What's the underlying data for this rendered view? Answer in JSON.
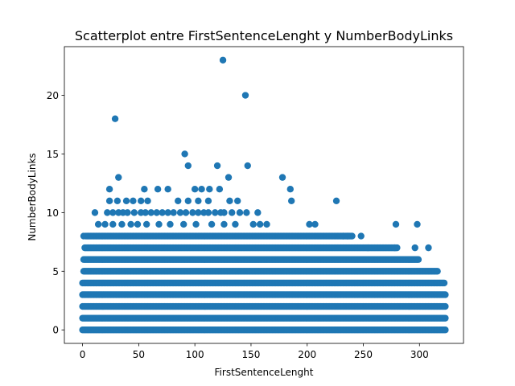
{
  "chart_data": {
    "type": "scatter",
    "title": "Scatterplot entre FirstSentenceLenght y NumberBodyLinks",
    "xlabel": "FirstSentenceLenght",
    "ylabel": "NumberBodyLinks",
    "xlim": [
      -16.2,
      339.2
    ],
    "ylim": [
      -1.15,
      24.15
    ],
    "xticks": [
      0,
      50,
      100,
      150,
      200,
      250,
      300
    ],
    "yticks": [
      0,
      5,
      10,
      15,
      20
    ],
    "grid": false,
    "marker_color": "#1f77b4",
    "series": [
      {
        "name": "",
        "points": [
          [
            125,
            23
          ],
          [
            145,
            20
          ],
          [
            29,
            18
          ],
          [
            91,
            15
          ],
          [
            94,
            14
          ],
          [
            120,
            14
          ],
          [
            147,
            14
          ],
          [
            32,
            13
          ],
          [
            130,
            13
          ],
          [
            178,
            13
          ],
          [
            24,
            12
          ],
          [
            55,
            12
          ],
          [
            67,
            12
          ],
          [
            76,
            12
          ],
          [
            100,
            12
          ],
          [
            106,
            12
          ],
          [
            113,
            12
          ],
          [
            122,
            12
          ],
          [
            185,
            12
          ],
          [
            24,
            11
          ],
          [
            31,
            11
          ],
          [
            39,
            11
          ],
          [
            45,
            11
          ],
          [
            52,
            11
          ],
          [
            58,
            11
          ],
          [
            85,
            11
          ],
          [
            94,
            11
          ],
          [
            103,
            11
          ],
          [
            112,
            11
          ],
          [
            131,
            11
          ],
          [
            138,
            11
          ],
          [
            186,
            11
          ],
          [
            226,
            11
          ],
          [
            11,
            10
          ],
          [
            22,
            10
          ],
          [
            27,
            10
          ],
          [
            32,
            10
          ],
          [
            36,
            10
          ],
          [
            40,
            10
          ],
          [
            46,
            10
          ],
          [
            52,
            10
          ],
          [
            56,
            10
          ],
          [
            61,
            10
          ],
          [
            66,
            10
          ],
          [
            71,
            10
          ],
          [
            76,
            10
          ],
          [
            81,
            10
          ],
          [
            87,
            10
          ],
          [
            92,
            10
          ],
          [
            98,
            10
          ],
          [
            103,
            10
          ],
          [
            108,
            10
          ],
          [
            112,
            10
          ],
          [
            118,
            10
          ],
          [
            123,
            10
          ],
          [
            126,
            10
          ],
          [
            133,
            10
          ],
          [
            140,
            10
          ],
          [
            146,
            10
          ],
          [
            156,
            10
          ],
          [
            14,
            9
          ],
          [
            20,
            9
          ],
          [
            27,
            9
          ],
          [
            35,
            9
          ],
          [
            43,
            9
          ],
          [
            49,
            9
          ],
          [
            57,
            9
          ],
          [
            68,
            9
          ],
          [
            78,
            9
          ],
          [
            90,
            9
          ],
          [
            101,
            9
          ],
          [
            115,
            9
          ],
          [
            126,
            9
          ],
          [
            136,
            9
          ],
          [
            152,
            9
          ],
          [
            158,
            9
          ],
          [
            164,
            9
          ],
          [
            202,
            9
          ],
          [
            207,
            9
          ],
          [
            279,
            9
          ],
          [
            298,
            9
          ],
          [
            1,
            8
          ],
          [
            278,
            7
          ],
          [
            296,
            7
          ],
          [
            308,
            7
          ],
          [
            254,
            7
          ],
          [
            232,
            8
          ],
          [
            236,
            8
          ],
          [
            248,
            8
          ]
        ],
        "dense_rows": [
          {
            "y": 0,
            "x_from": 0,
            "x_to": 323
          },
          {
            "y": 1,
            "x_from": 0,
            "x_to": 323
          },
          {
            "y": 2,
            "x_from": 0,
            "x_to": 323
          },
          {
            "y": 3,
            "x_from": 0,
            "x_to": 323
          },
          {
            "y": 4,
            "x_from": 0,
            "x_to": 322
          },
          {
            "y": 5,
            "x_from": 1,
            "x_to": 316
          },
          {
            "y": 6,
            "x_from": 1,
            "x_to": 299
          },
          {
            "y": 7,
            "x_from": 2,
            "x_to": 280
          },
          {
            "y": 8,
            "x_from": 3,
            "x_to": 240
          }
        ]
      }
    ]
  }
}
